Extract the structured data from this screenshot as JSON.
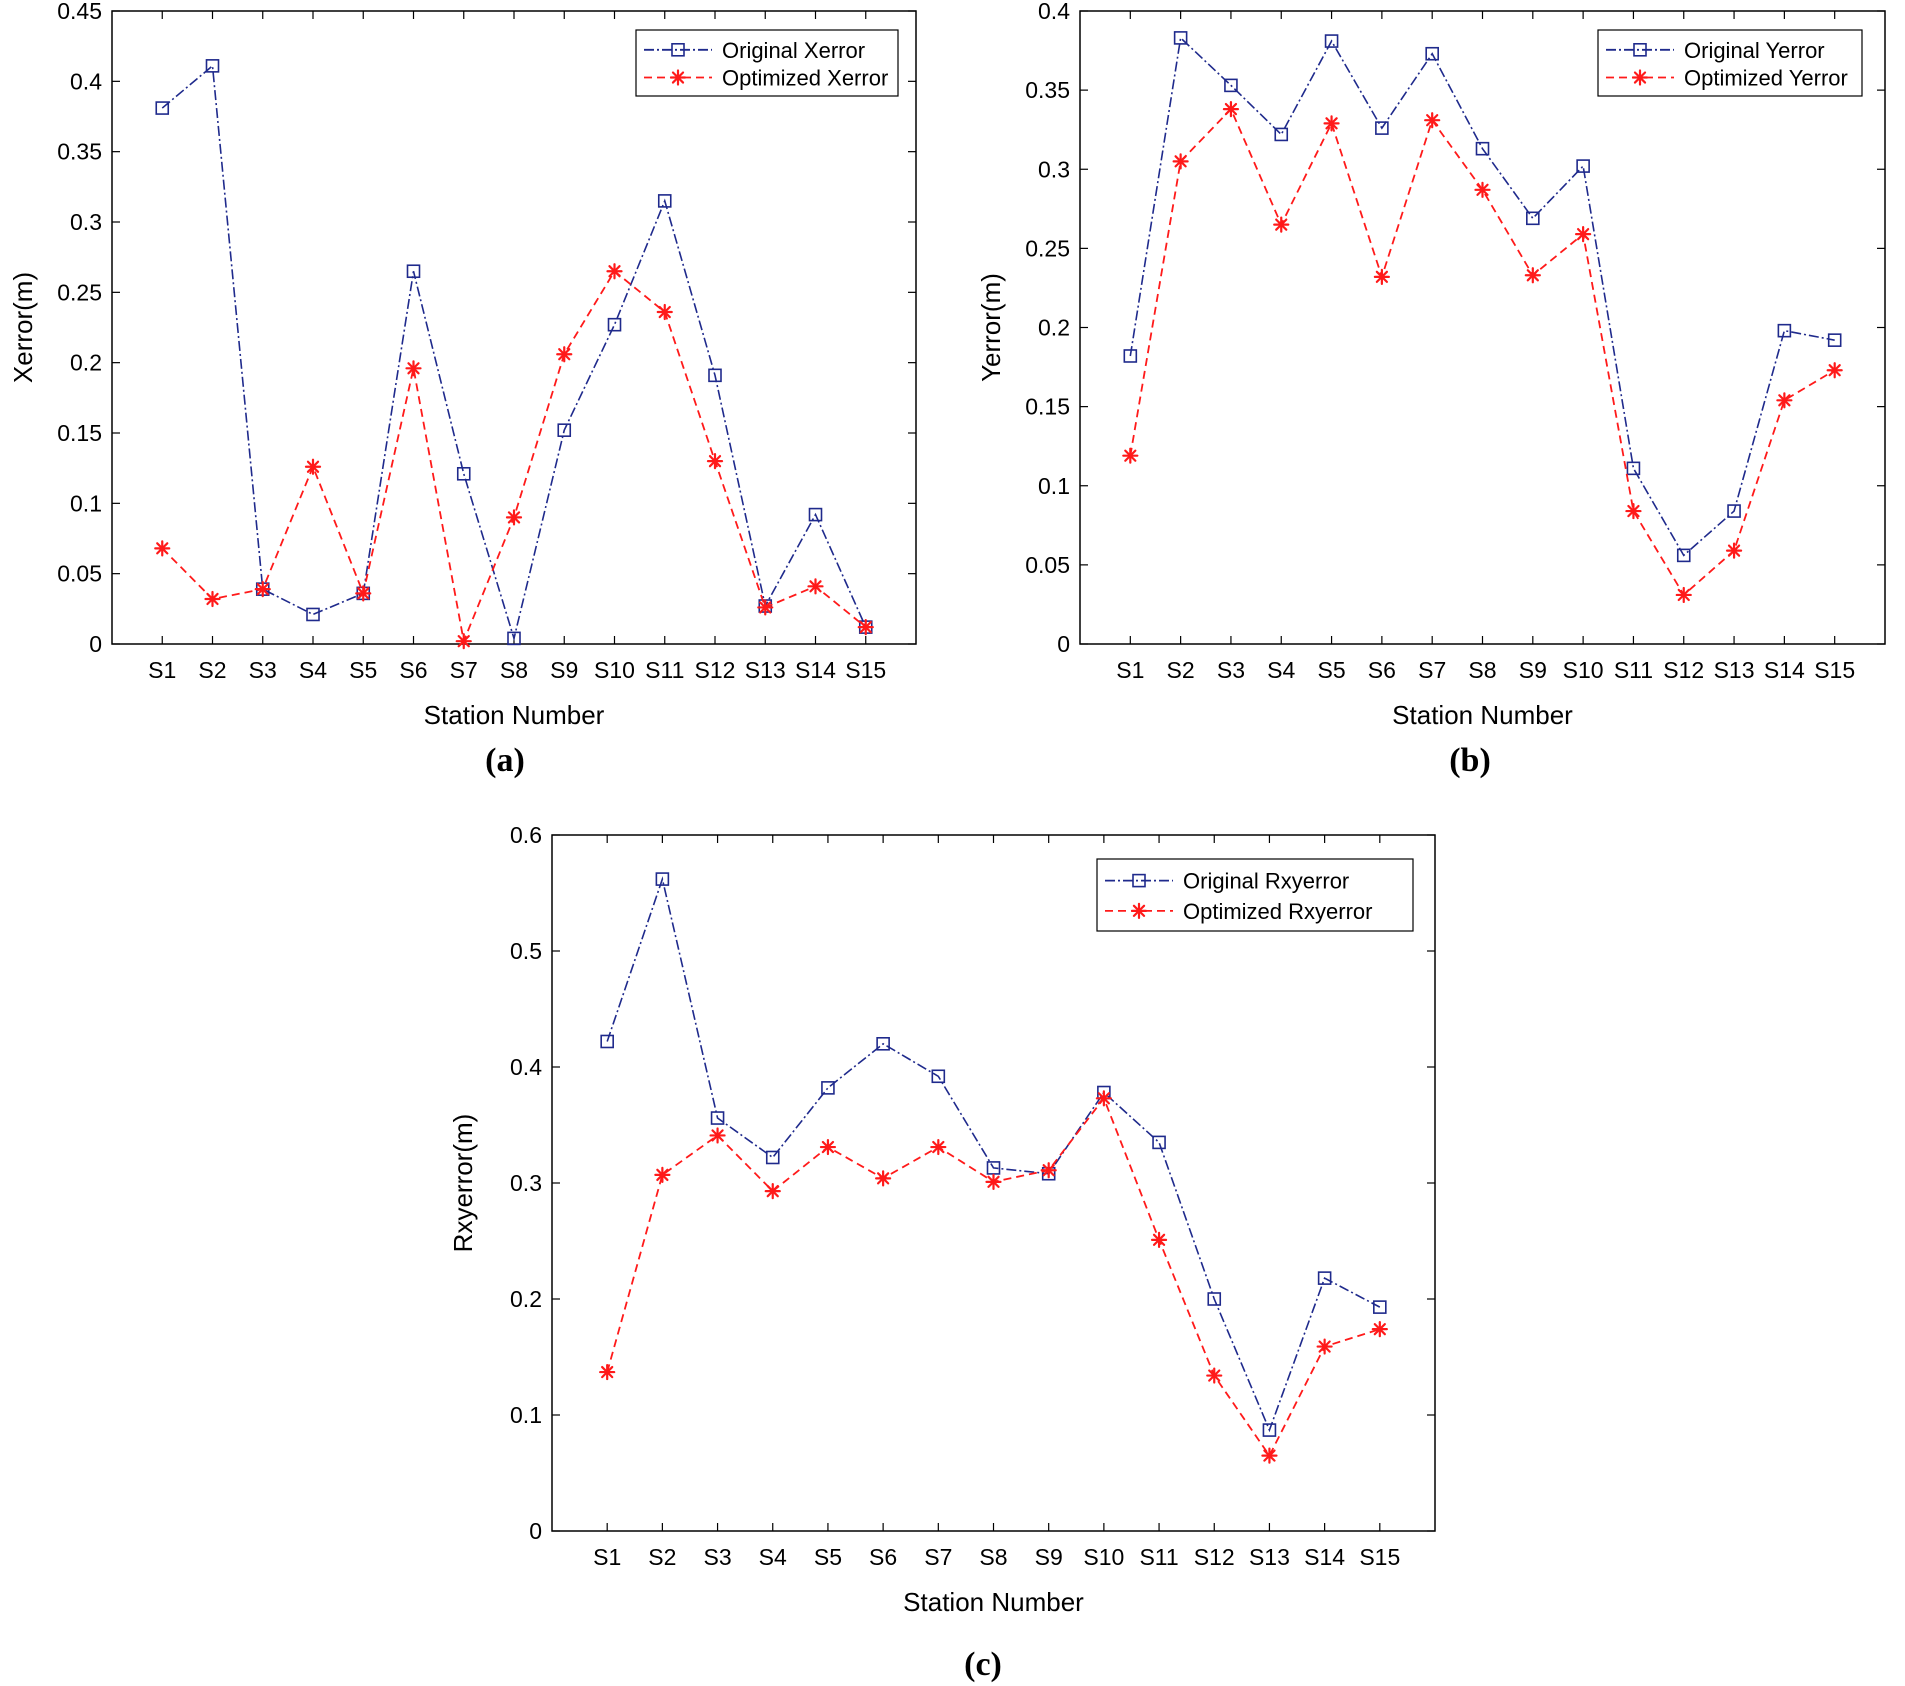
{
  "figure": {
    "panels": [
      "(a)",
      "(b)",
      "(c)"
    ]
  },
  "colors": {
    "original": "#1f2a8c",
    "optimized": "#ff1a1a",
    "axes": "#000000"
  },
  "chart_data": [
    {
      "type": "line",
      "panel": "(a)",
      "title": "",
      "xlabel": "Station Number",
      "ylabel": "Xerror(m)",
      "categories": [
        "S1",
        "S2",
        "S3",
        "S4",
        "S5",
        "S6",
        "S7",
        "S8",
        "S9",
        "S10",
        "S11",
        "S12",
        "S13",
        "S14",
        "S15"
      ],
      "ylim": [
        0,
        0.45
      ],
      "yticks": [
        0,
        0.05,
        0.1,
        0.15,
        0.2,
        0.25,
        0.3,
        0.35,
        0.4,
        0.45
      ],
      "ytick_labels": [
        "0",
        "0.05",
        "0.1",
        "0.15",
        "0.2",
        "0.25",
        "0.3",
        "0.35",
        "0.4",
        "0.45"
      ],
      "legend_position": "top-right",
      "grid": false,
      "series": [
        {
          "name": "Original Xerror",
          "marker": "square",
          "line": "dash-dot",
          "values": [
            0.381,
            0.411,
            0.039,
            0.021,
            0.036,
            0.265,
            0.121,
            0.004,
            0.152,
            0.227,
            0.315,
            0.191,
            0.027,
            0.092,
            0.012
          ]
        },
        {
          "name": "Optimized Xerror",
          "marker": "asterisk",
          "line": "dashed",
          "values": [
            0.068,
            0.032,
            0.039,
            0.126,
            0.036,
            0.196,
            0.002,
            0.09,
            0.206,
            0.265,
            0.236,
            0.13,
            0.026,
            0.041,
            0.012
          ]
        }
      ]
    },
    {
      "type": "line",
      "panel": "(b)",
      "title": "",
      "xlabel": "Station Number",
      "ylabel": "Yerror(m)",
      "categories": [
        "S1",
        "S2",
        "S3",
        "S4",
        "S5",
        "S6",
        "S7",
        "S8",
        "S9",
        "S10",
        "S11",
        "S12",
        "S13",
        "S14",
        "S15"
      ],
      "ylim": [
        0,
        0.4
      ],
      "yticks": [
        0,
        0.05,
        0.1,
        0.15,
        0.2,
        0.25,
        0.3,
        0.35,
        0.4
      ],
      "ytick_labels": [
        "0",
        "0.05",
        "0.1",
        "0.15",
        "0.2",
        "0.25",
        "0.3",
        "0.35",
        "0.4"
      ],
      "legend_position": "top-right",
      "grid": false,
      "series": [
        {
          "name": "Original Yerror",
          "marker": "square",
          "line": "dash-dot",
          "values": [
            0.182,
            0.383,
            0.353,
            0.322,
            0.381,
            0.326,
            0.373,
            0.313,
            0.269,
            0.302,
            0.111,
            0.056,
            0.084,
            0.198,
            0.192
          ]
        },
        {
          "name": "Optimized Yerror",
          "marker": "asterisk",
          "line": "dashed",
          "values": [
            0.119,
            0.305,
            0.338,
            0.265,
            0.329,
            0.232,
            0.331,
            0.287,
            0.233,
            0.259,
            0.084,
            0.031,
            0.059,
            0.154,
            0.173
          ]
        }
      ]
    },
    {
      "type": "line",
      "panel": "(c)",
      "title": "",
      "xlabel": "Station Number",
      "ylabel": "Rxyerror(m)",
      "categories": [
        "S1",
        "S2",
        "S3",
        "S4",
        "S5",
        "S6",
        "S7",
        "S8",
        "S9",
        "S10",
        "S11",
        "S12",
        "S13",
        "S14",
        "S15"
      ],
      "ylim": [
        0,
        0.6
      ],
      "yticks": [
        0,
        0.1,
        0.2,
        0.3,
        0.4,
        0.5,
        0.6
      ],
      "ytick_labels": [
        "0",
        "0.1",
        "0.2",
        "0.3",
        "0.4",
        "0.5",
        "0.6"
      ],
      "legend_position": "top-right",
      "grid": false,
      "series": [
        {
          "name": "Original Rxyerror",
          "marker": "square",
          "line": "dash-dot",
          "values": [
            0.422,
            0.562,
            0.356,
            0.322,
            0.382,
            0.42,
            0.392,
            0.313,
            0.308,
            0.378,
            0.335,
            0.2,
            0.087,
            0.218,
            0.193
          ]
        },
        {
          "name": "Optimized Rxyerror",
          "marker": "asterisk",
          "line": "dashed",
          "values": [
            0.137,
            0.307,
            0.341,
            0.293,
            0.331,
            0.304,
            0.331,
            0.301,
            0.311,
            0.373,
            0.251,
            0.134,
            0.065,
            0.159,
            0.174
          ]
        }
      ]
    }
  ]
}
